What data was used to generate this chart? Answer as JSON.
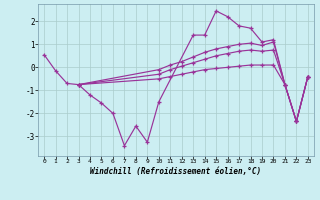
{
  "bg_color": "#cceef2",
  "grid_color": "#aacccc",
  "line_color": "#993399",
  "xlabel": "Windchill (Refroidissement éolien,°C)",
  "x_ticks": [
    0,
    1,
    2,
    3,
    4,
    5,
    6,
    7,
    8,
    9,
    10,
    11,
    12,
    13,
    14,
    15,
    16,
    17,
    18,
    19,
    20,
    21,
    22,
    23
  ],
  "y_ticks": [
    -3,
    -2,
    -1,
    0,
    1,
    2
  ],
  "ylim": [
    -3.85,
    2.75
  ],
  "xlim": [
    -0.5,
    23.5
  ],
  "line1_x": [
    0,
    1,
    2,
    3,
    4,
    5,
    6,
    7,
    8,
    9,
    10,
    13,
    14,
    15,
    16,
    17,
    18,
    19,
    20,
    21,
    22,
    23
  ],
  "line1_y": [
    0.55,
    -0.15,
    -0.7,
    -0.75,
    -1.2,
    -1.55,
    -2.0,
    -3.4,
    -2.55,
    -3.25,
    -1.5,
    1.4,
    1.4,
    2.45,
    2.2,
    1.8,
    1.7,
    1.1,
    1.2,
    -0.75,
    -2.35,
    -0.4
  ],
  "line2_x": [
    3,
    10,
    11,
    12,
    13,
    14,
    15,
    16,
    17,
    18,
    19,
    20,
    21,
    22,
    23
  ],
  "line2_y": [
    -0.75,
    -0.5,
    -0.4,
    -0.3,
    -0.2,
    -0.1,
    -0.05,
    0.0,
    0.05,
    0.1,
    0.1,
    0.1,
    -0.75,
    -2.35,
    -0.4
  ],
  "line3_x": [
    3,
    10,
    11,
    12,
    13,
    14,
    15,
    16,
    17,
    18,
    19,
    20,
    21,
    22,
    23
  ],
  "line3_y": [
    -0.75,
    -0.3,
    -0.1,
    0.05,
    0.2,
    0.35,
    0.5,
    0.6,
    0.7,
    0.75,
    0.7,
    0.75,
    -0.75,
    -2.35,
    -0.4
  ],
  "line4_x": [
    3,
    10,
    11,
    12,
    13,
    14,
    15,
    16,
    17,
    18,
    19,
    20,
    21,
    22,
    23
  ],
  "line4_y": [
    -0.75,
    -0.1,
    0.1,
    0.25,
    0.45,
    0.65,
    0.8,
    0.9,
    1.0,
    1.05,
    0.95,
    1.1,
    -0.75,
    -2.35,
    -0.4
  ]
}
